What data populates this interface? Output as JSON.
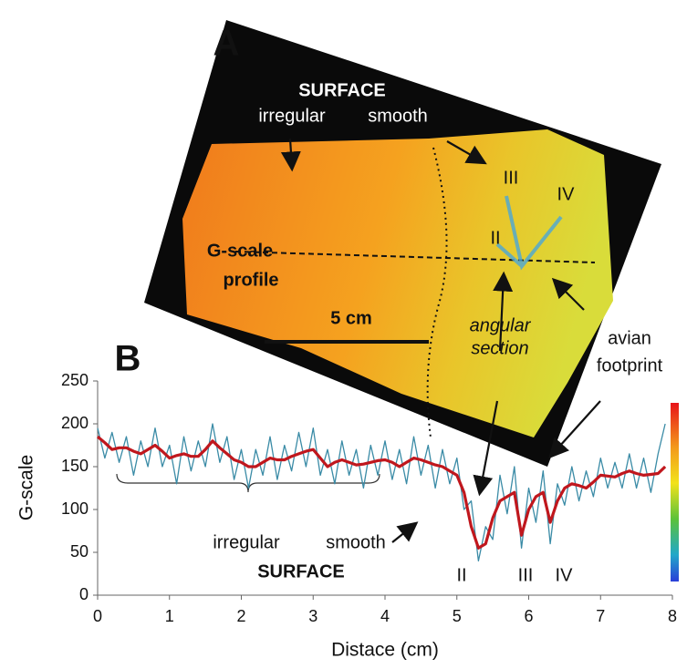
{
  "panel_a": {
    "label": "A",
    "surface": "SURFACE",
    "irregular": "irregular",
    "smooth": "smooth",
    "profile": [
      "G-scale",
      "profile"
    ],
    "scale_bar": "5 cm",
    "angular_section": [
      "angular",
      "section"
    ],
    "avian_footprint": [
      "avian",
      "footprint"
    ],
    "digits": [
      "II",
      "III",
      "IV"
    ]
  },
  "panel_b_label": "B",
  "chart_data": {
    "type": "line",
    "xlabel": "Distace (cm)",
    "ylabel": "G-scale",
    "x": [
      0,
      0.1,
      0.2,
      0.3,
      0.4,
      0.5,
      0.6,
      0.7,
      0.8,
      0.9,
      1,
      1.1,
      1.2,
      1.3,
      1.4,
      1.5,
      1.6,
      1.7,
      1.8,
      1.9,
      2,
      2.1,
      2.2,
      2.3,
      2.4,
      2.5,
      2.6,
      2.7,
      2.8,
      2.9,
      3,
      3.1,
      3.2,
      3.3,
      3.4,
      3.5,
      3.6,
      3.7,
      3.8,
      3.9,
      4,
      4.1,
      4.2,
      4.3,
      4.4,
      4.5,
      4.6,
      4.7,
      4.8,
      4.9,
      5,
      5.1,
      5.2,
      5.3,
      5.4,
      5.5,
      5.6,
      5.7,
      5.8,
      5.9,
      6,
      6.1,
      6.2,
      6.3,
      6.4,
      6.5,
      6.6,
      6.7,
      6.8,
      6.9,
      7,
      7.1,
      7.2,
      7.3,
      7.4,
      7.5,
      7.6,
      7.7,
      7.8,
      7.9
    ],
    "series": [
      {
        "color": "#3a8ba6",
        "values": [
          195,
          160,
          190,
          155,
          185,
          140,
          180,
          150,
          195,
          150,
          175,
          130,
          185,
          145,
          180,
          150,
          200,
          155,
          185,
          135,
          170,
          125,
          170,
          140,
          185,
          135,
          175,
          145,
          190,
          150,
          195,
          140,
          170,
          130,
          180,
          140,
          170,
          125,
          175,
          140,
          180,
          135,
          170,
          130,
          185,
          140,
          175,
          125,
          170,
          130,
          160,
          100,
          110,
          40,
          80,
          65,
          140,
          95,
          150,
          55,
          125,
          85,
          145,
          60,
          130,
          105,
          150,
          110,
          145,
          115,
          160,
          125,
          155,
          125,
          165,
          125,
          160,
          120,
          165,
          200
        ]
      },
      {
        "color": "#c0171d",
        "values": [
          185,
          178,
          170,
          172,
          172,
          168,
          165,
          170,
          175,
          168,
          160,
          163,
          165,
          162,
          162,
          170,
          180,
          172,
          165,
          158,
          155,
          150,
          150,
          155,
          160,
          158,
          158,
          162,
          165,
          168,
          170,
          160,
          150,
          155,
          158,
          155,
          152,
          153,
          155,
          157,
          158,
          155,
          150,
          155,
          160,
          158,
          155,
          152,
          150,
          145,
          140,
          120,
          80,
          55,
          60,
          90,
          110,
          115,
          120,
          70,
          100,
          115,
          120,
          85,
          110,
          125,
          130,
          128,
          125,
          132,
          140,
          139,
          138,
          142,
          145,
          142,
          140,
          141,
          142,
          150
        ]
      }
    ],
    "xlim": [
      0,
      8
    ],
    "xticks": [
      0,
      1,
      2,
      3,
      4,
      5,
      6,
      7,
      8
    ],
    "ylim": [
      0,
      250
    ],
    "yticks": [
      0,
      50,
      100,
      150,
      200,
      250
    ],
    "annotations": {
      "irregular": "irregular",
      "smooth": "smooth",
      "surface": "SURFACE",
      "digits": [
        "II",
        "III",
        "IV"
      ]
    }
  }
}
